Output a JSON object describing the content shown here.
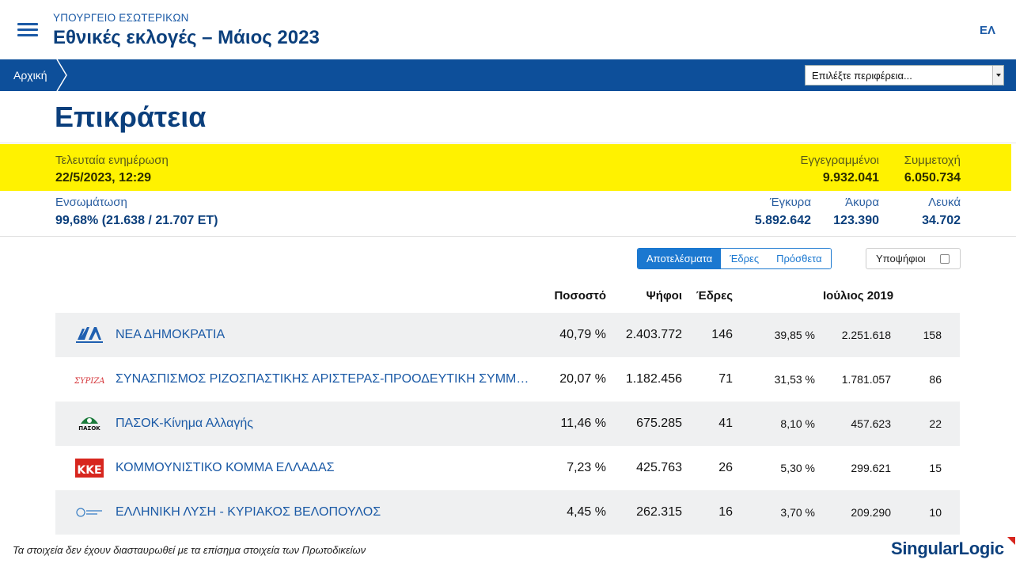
{
  "header": {
    "ministry": "ΥΠΟΥΡΓΕΙΟ ΕΣΩΤΕΡΙΚΩΝ",
    "title": "Εθνικές εκλογές – Μάιος 2023",
    "language": "ΕΛ"
  },
  "nav": {
    "breadcrumb": "Αρχική",
    "region_placeholder": "Επιλέξτε περιφέρεια..."
  },
  "page_title": "Επικράτεια",
  "stats": {
    "last_update_label": "Τελευταία ενημέρωση",
    "last_update_value": "22/5/2023, 12:29",
    "registered_label": "Εγγεγραμμένοι",
    "registered_value": "9.932.041",
    "turnout_label": "Συμμετοχή",
    "turnout_value": "6.050.734",
    "integration_label": "Ενσωμάτωση",
    "integration_value": "99,68% (21.638 / 21.707 ΕΤ)",
    "valid_label": "Έγκυρα",
    "valid_value": "5.892.642",
    "invalid_label": "Άκυρα",
    "invalid_value": "123.390",
    "blank_label": "Λευκά",
    "blank_value": "34.702"
  },
  "tabs": {
    "results": "Αποτελέσματα",
    "seats": "Έδρες",
    "additional": "Πρόσθετα",
    "candidates": "Υποψήφιοι"
  },
  "table": {
    "headers": {
      "percent": "Ποσοστό",
      "votes": "Ψήφοι",
      "seats": "Έδρες",
      "previous": "Ιούλιος 2019"
    },
    "rows": [
      {
        "name": "ΝΕΑ ΔΗΜΟΚΡΑΤΙΑ",
        "percent": "40,79 %",
        "votes": "2.403.772",
        "seats": "146",
        "prev_percent": "39,85 %",
        "prev_votes": "2.251.618",
        "prev_seats": "158",
        "logo_text": "ΝΔ"
      },
      {
        "name": "ΣΥΝΑΣΠΙΣΜΟΣ ΡΙΖΟΣΠΑΣΤΙΚΗΣ ΑΡΙΣΤΕΡΑΣ-ΠΡΟΟΔΕΥΤΙΚΗ ΣΥΜΜΑ...",
        "percent": "20,07 %",
        "votes": "1.182.456",
        "seats": "71",
        "prev_percent": "31,53 %",
        "prev_votes": "1.781.057",
        "prev_seats": "86",
        "logo_text": "ΣΥΡΙΖΑ"
      },
      {
        "name": "ΠΑΣΟΚ-Κίνημα Αλλαγής",
        "percent": "11,46 %",
        "votes": "675.285",
        "seats": "41",
        "prev_percent": "8,10 %",
        "prev_votes": "457.623",
        "prev_seats": "22",
        "logo_text": "ΠΑΣΟΚ"
      },
      {
        "name": "ΚΟΜΜΟΥΝΙΣΤΙΚΟ ΚΟΜΜΑ ΕΛΛΑΔΑΣ",
        "percent": "7,23 %",
        "votes": "425.763",
        "seats": "26",
        "prev_percent": "5,30 %",
        "prev_votes": "299.621",
        "prev_seats": "15",
        "logo_text": "ΚΚΕ"
      },
      {
        "name": "ΕΛΛΗΝΙΚΗ ΛΥΣΗ - ΚΥΡΙΑΚΟΣ ΒΕΛΟΠΟΥΛΟΣ",
        "percent": "4,45 %",
        "votes": "262.315",
        "seats": "16",
        "prev_percent": "3,70 %",
        "prev_votes": "209.290",
        "prev_seats": "10",
        "logo_text": ""
      }
    ]
  },
  "footer": {
    "note": "Τα στοιχεία δεν έχουν διασταυρωθεί με τα επίσημα στοιχεία των Πρωτοδικείων",
    "brand": "SingularLogic"
  },
  "colors": {
    "primary": "#0d4f9a",
    "highlight": "#fff200",
    "accent": "#1b78d0"
  },
  "icons": [
    "menu-icon",
    "chevron-right-icon",
    "dropdown-caret-icon",
    "checkbox-icon"
  ]
}
